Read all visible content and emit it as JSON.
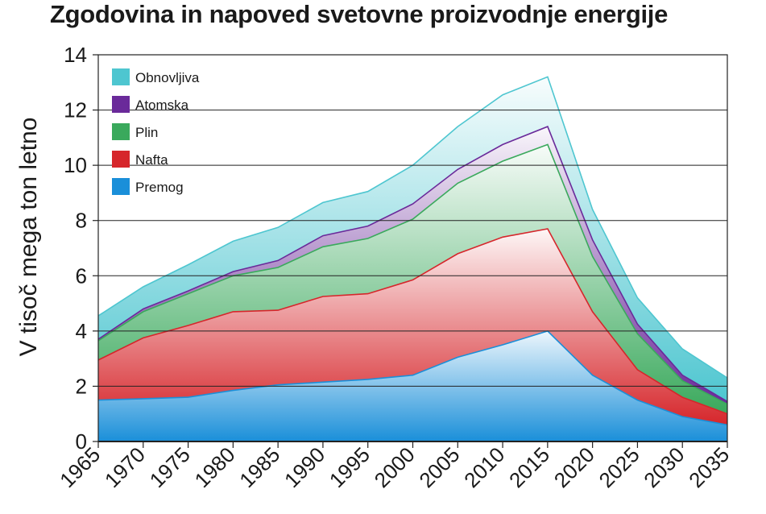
{
  "chart_data": {
    "type": "area",
    "stacked": true,
    "title": "Zgodovina in napoved svetovne proizvodnje energije",
    "xlabel": "",
    "ylabel": "V tisoč mega ton letno",
    "x": [
      1965,
      1970,
      1975,
      1980,
      1985,
      1990,
      1995,
      2000,
      2005,
      2010,
      2015,
      2020,
      2025,
      2030,
      2035
    ],
    "xlim": [
      1965,
      2035
    ],
    "ylim": [
      0,
      14
    ],
    "yticks": [
      0,
      2,
      4,
      6,
      8,
      10,
      12,
      14
    ],
    "grid": "horizontal",
    "legend_position": "top-left",
    "series": [
      {
        "name": "Premog",
        "color": "#1a8fd9",
        "values": [
          1.5,
          1.55,
          1.6,
          1.85,
          2.05,
          2.15,
          2.25,
          2.4,
          3.05,
          3.5,
          4.0,
          2.4,
          1.5,
          0.9,
          0.6
        ]
      },
      {
        "name": "Nafta",
        "color": "#d6262b",
        "values": [
          1.45,
          2.2,
          2.6,
          2.85,
          2.7,
          3.1,
          3.1,
          3.45,
          3.75,
          3.9,
          3.7,
          2.3,
          1.1,
          0.7,
          0.4
        ]
      },
      {
        "name": "Plin",
        "color": "#3aa95c",
        "values": [
          0.7,
          0.95,
          1.15,
          1.3,
          1.55,
          1.8,
          2.0,
          2.2,
          2.55,
          2.75,
          3.05,
          2.0,
          1.3,
          0.6,
          0.35
        ]
      },
      {
        "name": "Atomska",
        "color": "#6a2a9a",
        "values": [
          0.05,
          0.1,
          0.1,
          0.15,
          0.25,
          0.4,
          0.45,
          0.55,
          0.5,
          0.6,
          0.65,
          0.6,
          0.35,
          0.2,
          0.1
        ]
      },
      {
        "name": "Obnovljiva",
        "color": "#4ec6d0",
        "values": [
          0.85,
          0.8,
          0.95,
          1.1,
          1.2,
          1.2,
          1.25,
          1.4,
          1.55,
          1.8,
          1.8,
          1.1,
          0.95,
          0.95,
          0.85
        ]
      }
    ],
    "legend": [
      "Obnovljiva",
      "Atomska",
      "Plin",
      "Nafta",
      "Premog"
    ]
  }
}
